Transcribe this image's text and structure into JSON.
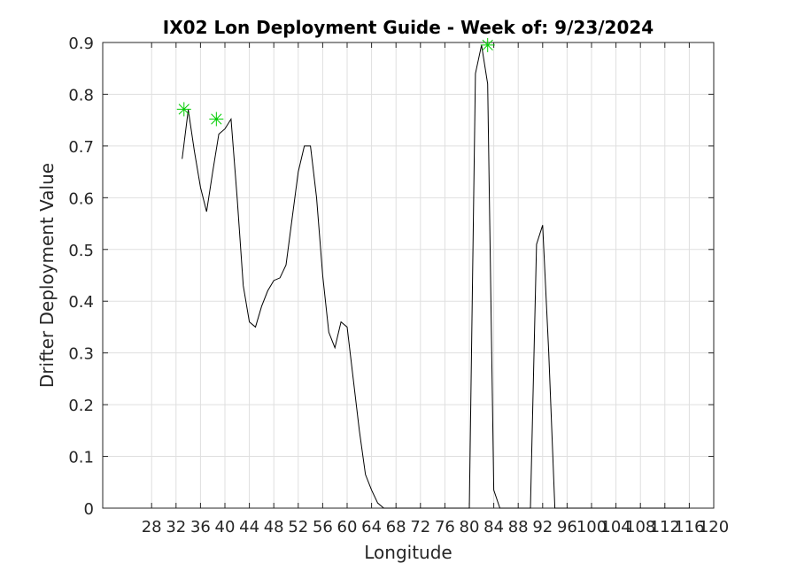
{
  "chart_data": {
    "type": "line",
    "title": "IX02 Lon Deployment Guide - Week of: 9/23/2024",
    "xlabel": "Longitude",
    "ylabel": "Drifter Deployment Value",
    "xlim": [
      20,
      120
    ],
    "ylim": [
      0,
      0.9
    ],
    "xticks": [
      28,
      32,
      36,
      40,
      44,
      48,
      52,
      56,
      60,
      64,
      68,
      72,
      76,
      80,
      84,
      88,
      92,
      96,
      100,
      104,
      108,
      112,
      116,
      120
    ],
    "yticks": [
      0,
      0.1,
      0.2,
      0.3,
      0.4,
      0.5,
      0.6,
      0.7,
      0.8,
      0.9
    ],
    "grid": true,
    "line_color": "#000000",
    "marker_color": "#00cc00",
    "series": [
      {
        "x": [
          33,
          34,
          35,
          36,
          37,
          38,
          39,
          40,
          41,
          42,
          43,
          44,
          45,
          46,
          47,
          48,
          49,
          50,
          51,
          52,
          53,
          54,
          55,
          56,
          57,
          58,
          59,
          60,
          61,
          62,
          63,
          64,
          65,
          66,
          67,
          68,
          69,
          70,
          71,
          72,
          73,
          74,
          75,
          76,
          77,
          78,
          79,
          80,
          81,
          82,
          83,
          84,
          85,
          86,
          87,
          88,
          89,
          90,
          91,
          92,
          93,
          94,
          95,
          96,
          97,
          98,
          99,
          100,
          101,
          102,
          103,
          104,
          105,
          106,
          107,
          108,
          109,
          110,
          111,
          112,
          113,
          114,
          115,
          116
        ],
        "y": [
          0.675,
          0.77,
          0.69,
          0.62,
          0.573,
          0.65,
          0.723,
          0.733,
          0.752,
          0.6,
          0.43,
          0.36,
          0.35,
          0.39,
          0.42,
          0.44,
          0.445,
          0.47,
          0.56,
          0.65,
          0.7,
          0.7,
          0.6,
          0.45,
          0.34,
          0.31,
          0.36,
          0.35,
          0.25,
          0.15,
          0.065,
          0.035,
          0.01,
          0.0,
          0.0,
          0.0,
          0.0,
          0.0,
          0.0,
          0.0,
          0.0,
          0.0,
          0.0,
          0.0,
          0.0,
          0.0,
          0.0,
          0.0,
          0.84,
          0.895,
          0.82,
          0.035,
          0.0,
          0.0,
          0.0,
          0.0,
          0.0,
          0.0,
          0.51,
          0.547,
          0.3,
          0.0,
          0.0,
          0.0,
          0.0,
          0.0,
          0.0,
          0.0,
          0.0,
          0.0,
          0.0,
          0.0,
          0.0,
          0.0,
          0.0,
          0.0,
          0.0,
          0.0,
          0.0,
          0.0,
          0.0,
          0.0,
          0.0,
          0.0
        ]
      }
    ],
    "markers": [
      {
        "x": 33.3,
        "y": 0.771
      },
      {
        "x": 38.6,
        "y": 0.752
      },
      {
        "x": 83.0,
        "y": 0.895
      }
    ]
  }
}
